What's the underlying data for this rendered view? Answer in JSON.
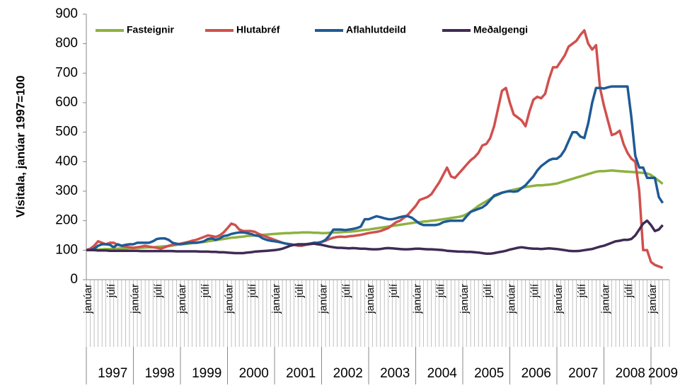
{
  "chart_data": {
    "type": "line",
    "y_label": "Vísitala, janúar 1997=100",
    "ylim": [
      0,
      900
    ],
    "yticks": [
      0,
      100,
      200,
      300,
      400,
      500,
      600,
      700,
      800,
      900
    ],
    "grid": false,
    "legend": "top",
    "years": [
      "1997",
      "1998",
      "1999",
      "2000",
      "2001",
      "2002",
      "2003",
      "2004",
      "2005",
      "2006",
      "2007",
      "2008",
      "2009"
    ],
    "categories": [
      "janúar",
      null,
      null,
      null,
      null,
      null,
      "júlí",
      null,
      null,
      null,
      null,
      null,
      "janúar",
      null,
      null,
      null,
      null,
      null,
      "júlí",
      null,
      null,
      null,
      null,
      null,
      "janúar",
      null,
      null,
      null,
      null,
      null,
      "júlí",
      null,
      null,
      null,
      null,
      null,
      "janúar",
      null,
      null,
      null,
      null,
      null,
      "júlí",
      null,
      null,
      null,
      null,
      null,
      "janúar",
      null,
      null,
      null,
      null,
      null,
      "júlí",
      null,
      null,
      null,
      null,
      null,
      "janúar",
      null,
      null,
      null,
      null,
      null,
      "júlí",
      null,
      null,
      null,
      null,
      null,
      "janúar",
      null,
      null,
      null,
      null,
      null,
      "júlí",
      null,
      null,
      null,
      null,
      null,
      "janúar",
      null,
      null,
      null,
      null,
      null,
      "júlí",
      null,
      null,
      null,
      null,
      null,
      "janúar",
      null,
      null,
      null,
      null,
      null,
      "júlí",
      null,
      null,
      null,
      null,
      null,
      "janúar",
      null,
      null,
      null,
      null,
      null,
      "júlí",
      null,
      null,
      null,
      null,
      null,
      "janúar",
      null,
      null,
      null,
      null,
      null,
      "júlí",
      null,
      null,
      null,
      null,
      null,
      "janúar",
      null,
      null,
      null,
      null,
      null,
      "júlí",
      null,
      null,
      null,
      null,
      null,
      "janúar",
      null,
      null,
      null
    ],
    "series": [
      {
        "name": "Fasteignir",
        "color": "#8db23f",
        "values": [
          100,
          100,
          101,
          102,
          103,
          104,
          104,
          105,
          105,
          106,
          106,
          107,
          107,
          108,
          108,
          109,
          110,
          110,
          111,
          112,
          113,
          114,
          116,
          118,
          120,
          121,
          122,
          124,
          125,
          127,
          128,
          130,
          132,
          134,
          136,
          138,
          140,
          142,
          143,
          145,
          146,
          148,
          149,
          150,
          151,
          152,
          153,
          154,
          155,
          156,
          157,
          158,
          158,
          159,
          159,
          160,
          160,
          160,
          159,
          159,
          158,
          158,
          159,
          160,
          160,
          161,
          162,
          163,
          164,
          165,
          167,
          169,
          170,
          172,
          174,
          176,
          178,
          180,
          182,
          184,
          186,
          188,
          190,
          192,
          194,
          195,
          197,
          198,
          200,
          201,
          203,
          205,
          207,
          209,
          211,
          213,
          216,
          222,
          230,
          240,
          250,
          258,
          266,
          274,
          282,
          288,
          294,
          298,
          302,
          305,
          308,
          311,
          314,
          316,
          318,
          320,
          320,
          321,
          322,
          324,
          326,
          330,
          334,
          338,
          342,
          346,
          350,
          354,
          358,
          362,
          366,
          368,
          368,
          369,
          370,
          369,
          368,
          367,
          366,
          365,
          364,
          363,
          362,
          360,
          355,
          345,
          335,
          325
        ]
      },
      {
        "name": "Hlutabréf",
        "color": "#d0504d",
        "values": [
          100,
          105,
          115,
          130,
          125,
          120,
          125,
          125,
          118,
          115,
          112,
          110,
          108,
          110,
          112,
          115,
          112,
          110,
          108,
          105,
          110,
          115,
          118,
          120,
          122,
          125,
          128,
          132,
          135,
          140,
          145,
          150,
          148,
          145,
          150,
          160,
          175,
          190,
          185,
          170,
          165,
          165,
          165,
          162,
          155,
          150,
          145,
          140,
          135,
          130,
          125,
          122,
          120,
          118,
          115,
          115,
          118,
          120,
          122,
          125,
          128,
          132,
          138,
          142,
          145,
          146,
          145,
          147,
          148,
          150,
          152,
          155,
          158,
          160,
          162,
          165,
          170,
          175,
          185,
          195,
          200,
          210,
          220,
          235,
          250,
          270,
          275,
          280,
          290,
          310,
          330,
          355,
          380,
          350,
          345,
          360,
          375,
          390,
          405,
          415,
          430,
          455,
          460,
          480,
          520,
          580,
          640,
          650,
          600,
          560,
          550,
          540,
          520,
          570,
          610,
          620,
          615,
          630,
          680,
          720,
          720,
          740,
          760,
          790,
          800,
          810,
          830,
          845,
          800,
          780,
          795,
          650,
          590,
          540,
          490,
          495,
          505,
          460,
          430,
          410,
          400,
          300,
          100,
          100,
          60,
          50,
          45,
          40
        ]
      },
      {
        "name": "Aflahlutdeild",
        "color": "#1f5a96",
        "values": [
          100,
          100,
          105,
          115,
          120,
          120,
          118,
          110,
          120,
          115,
          118,
          120,
          120,
          125,
          125,
          125,
          125,
          130,
          138,
          140,
          140,
          135,
          125,
          122,
          120,
          122,
          125,
          125,
          125,
          127,
          130,
          138,
          140,
          135,
          140,
          148,
          150,
          155,
          158,
          160,
          160,
          158,
          155,
          150,
          148,
          140,
          135,
          132,
          130,
          128,
          125,
          122,
          120,
          118,
          118,
          118,
          120,
          122,
          125,
          125,
          128,
          135,
          150,
          170,
          170,
          170,
          168,
          170,
          172,
          175,
          180,
          205,
          205,
          210,
          215,
          212,
          208,
          205,
          205,
          208,
          212,
          215,
          215,
          210,
          200,
          190,
          185,
          185,
          185,
          185,
          188,
          195,
          198,
          200,
          200,
          200,
          200,
          215,
          230,
          235,
          240,
          245,
          255,
          270,
          285,
          290,
          295,
          298,
          300,
          298,
          300,
          310,
          320,
          335,
          350,
          370,
          385,
          395,
          405,
          410,
          410,
          420,
          440,
          470,
          500,
          500,
          485,
          480,
          530,
          600,
          650,
          650,
          648,
          652,
          655,
          655,
          655,
          655,
          655,
          550,
          420,
          380,
          380,
          345,
          345,
          345,
          280,
          260
        ]
      },
      {
        "name": "Meðalgengi",
        "color": "#3f2b55",
        "values": [
          100,
          100,
          100,
          99,
          99,
          99,
          98,
          98,
          98,
          98,
          98,
          98,
          98,
          98,
          97,
          97,
          97,
          97,
          97,
          97,
          97,
          97,
          97,
          96,
          96,
          96,
          96,
          96,
          96,
          95,
          95,
          95,
          94,
          94,
          93,
          93,
          92,
          91,
          90,
          90,
          90,
          92,
          93,
          95,
          96,
          97,
          98,
          99,
          100,
          102,
          105,
          110,
          115,
          118,
          120,
          120,
          120,
          122,
          122,
          120,
          118,
          115,
          112,
          110,
          108,
          108,
          107,
          106,
          107,
          106,
          105,
          105,
          104,
          103,
          103,
          104,
          106,
          107,
          106,
          105,
          104,
          103,
          103,
          104,
          105,
          105,
          104,
          103,
          103,
          102,
          101,
          100,
          98,
          97,
          96,
          95,
          95,
          94,
          94,
          93,
          92,
          90,
          88,
          88,
          90,
          93,
          95,
          98,
          102,
          105,
          108,
          110,
          108,
          106,
          105,
          105,
          104,
          105,
          106,
          105,
          104,
          102,
          100,
          98,
          97,
          97,
          98,
          100,
          102,
          104,
          108,
          112,
          115,
          120,
          125,
          130,
          132,
          135,
          135,
          138,
          150,
          170,
          190,
          200,
          185,
          165,
          170,
          185
        ]
      }
    ]
  }
}
